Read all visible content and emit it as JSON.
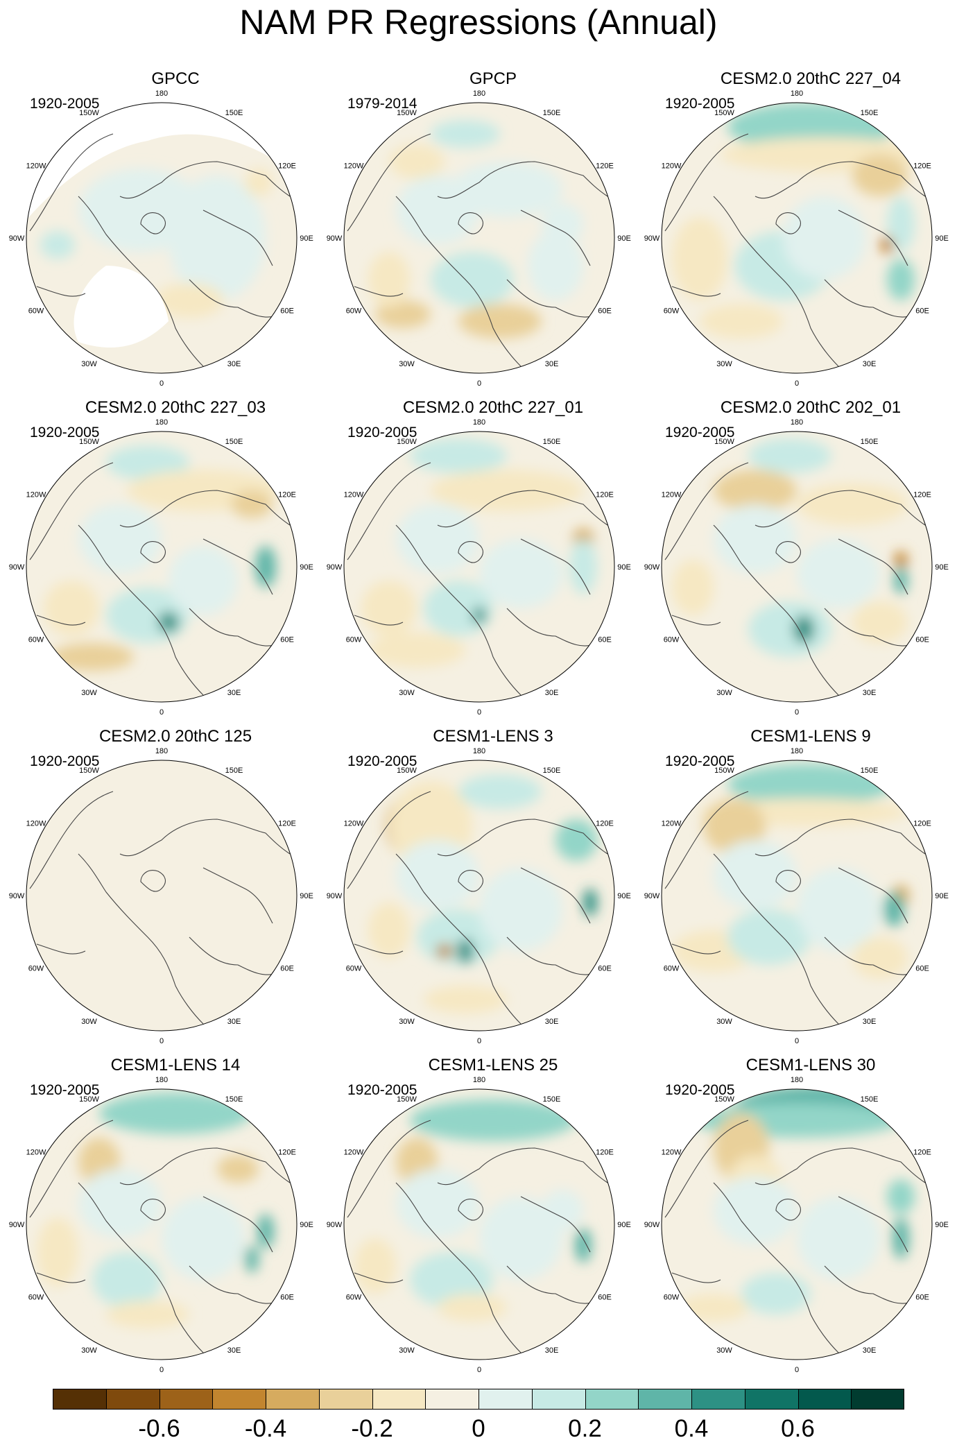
{
  "title": "NAM PR Regressions (Annual)",
  "lon_labels": [
    "180",
    "150E",
    "120E",
    "90E",
    "60E",
    "30E",
    "0",
    "30W",
    "60W",
    "90W",
    "120W",
    "150W"
  ],
  "panels": [
    {
      "title": "GPCC",
      "period": "1920-2005",
      "land_masked": true,
      "pattern": "gpcc"
    },
    {
      "title": "GPCP",
      "period": "1979-2014",
      "pattern": "gpcp"
    },
    {
      "title": "CESM2.0 20thC 227_04",
      "period": "1920-2005",
      "pattern": "p0404"
    },
    {
      "title": "CESM2.0 20thC 227_03",
      "period": "1920-2005",
      "pattern": "p0403"
    },
    {
      "title": "CESM2.0 20thC 227_01",
      "period": "1920-2005",
      "pattern": "p0401"
    },
    {
      "title": "CESM2.0 20thC 202_01",
      "period": "1920-2005",
      "pattern": "p0201"
    },
    {
      "title": "CESM2.0 20thC 125",
      "period": "1920-2005",
      "pattern": "p125"
    },
    {
      "title": "CESM1-LENS 3",
      "period": "1920-2005",
      "pattern": "l3"
    },
    {
      "title": "CESM1-LENS 9",
      "period": "1920-2005",
      "pattern": "l9"
    },
    {
      "title": "CESM1-LENS 14",
      "period": "1920-2005",
      "pattern": "l14"
    },
    {
      "title": "CESM1-LENS 25",
      "period": "1920-2005",
      "pattern": "l25"
    },
    {
      "title": "CESM1-LENS 30",
      "period": "1920-2005",
      "pattern": "l30"
    }
  ],
  "colorbar": {
    "colors": [
      "#553005",
      "#7f4a0d",
      "#9d6219",
      "#c2852f",
      "#d6ab5f",
      "#e9d09a",
      "#f6e8c3",
      "#f5f0e2",
      "#e1f1ee",
      "#c7eae5",
      "#93d5c8",
      "#5fb5a8",
      "#2d9184",
      "#107466",
      "#03594d",
      "#013c30"
    ],
    "tick_labels": [
      "-0.6",
      "-0.4",
      "-0.2",
      "0",
      "0.2",
      "0.4",
      "0.6"
    ]
  }
}
